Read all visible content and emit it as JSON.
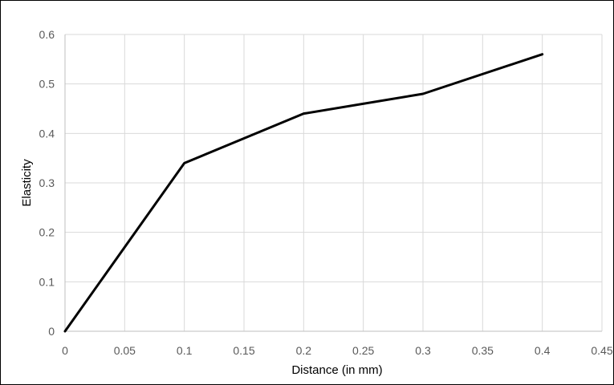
{
  "chart_data": {
    "type": "line",
    "title": "",
    "xlabel": "Distance (in mm)",
    "ylabel": "Elasticity",
    "xlim": [
      0,
      0.45
    ],
    "ylim": [
      0,
      0.6
    ],
    "x_ticks": [
      "0",
      "0.05",
      "0.1",
      "0.15",
      "0.2",
      "0.25",
      "0.3",
      "0.35",
      "0.4",
      "0.45"
    ],
    "y_ticks": [
      "0",
      "0.1",
      "0.2",
      "0.3",
      "0.4",
      "0.5",
      "0.6"
    ],
    "grid": true,
    "legend": "none",
    "series": [
      {
        "color": "#000000",
        "x": [
          0,
          0.1,
          0.2,
          0.3,
          0.4
        ],
        "y": [
          0,
          0.34,
          0.44,
          0.48,
          0.56
        ]
      }
    ]
  }
}
